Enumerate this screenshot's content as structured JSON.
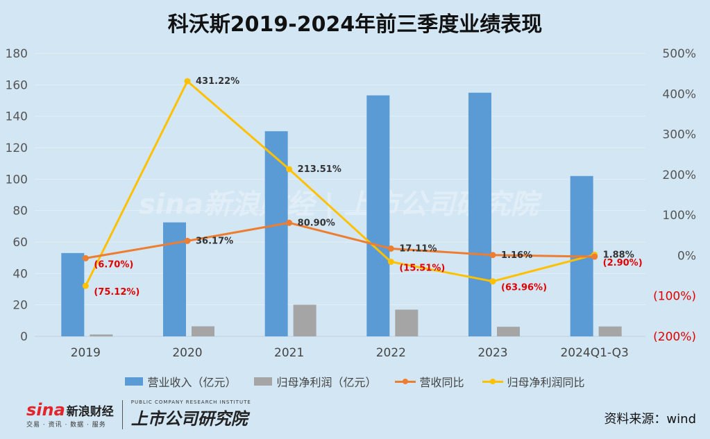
{
  "title": "科沃斯2019-2024年前三季度业绩表现",
  "source": "资料来源：wind",
  "footer": {
    "sina_mark": "sina",
    "brand": "新浪财经",
    "brand_sub": "交易 · 资讯 · 数据 · 服务",
    "institute": "上市公司研究院",
    "institute_en": "PUBLIC COMPANY RESEARCH INSTITUTE"
  },
  "watermark": "sina新浪财经 | 上市公司研究院",
  "colors": {
    "revenue": "#5b9bd5",
    "net_profit": "#a5a5a5",
    "revenue_yoy": "#ed7d31",
    "profit_yoy": "#ffc000",
    "negative_label": "#e00000"
  },
  "chart_data": {
    "type": "bar",
    "categories": [
      "2019",
      "2020",
      "2021",
      "2022",
      "2023",
      "2024Q1-Q3"
    ],
    "series": [
      {
        "name": "营业收入（亿元）",
        "type": "bar",
        "axis": "left",
        "values": [
          53,
          72.5,
          130.5,
          153.3,
          155.0,
          102.0
        ]
      },
      {
        "name": "归母净利润（亿元）",
        "type": "bar",
        "axis": "left",
        "values": [
          1.2,
          6.4,
          20.1,
          17.0,
          6.1,
          6.3
        ]
      },
      {
        "name": "营收同比",
        "type": "line",
        "axis": "right",
        "values": [
          -6.7,
          36.17,
          80.9,
          17.11,
          1.16,
          -2.9
        ],
        "labels": [
          "(6.70%)",
          "36.17%",
          "80.90%",
          "17.11%",
          "1.16%",
          "(2.90%)"
        ]
      },
      {
        "name": "归母净利润同比",
        "type": "line",
        "axis": "right",
        "values": [
          -75.12,
          431.22,
          213.51,
          -15.51,
          -63.96,
          1.88
        ],
        "labels": [
          "(75.12%)",
          "431.22%",
          "213.51%",
          "(15.51%)",
          "(63.96%)",
          "1.88%"
        ]
      }
    ],
    "y_left": {
      "min": 0,
      "max": 180,
      "ticks": [
        "0",
        "20",
        "40",
        "60",
        "80",
        "100",
        "120",
        "140",
        "160",
        "180"
      ]
    },
    "y_right": {
      "min": -200,
      "max": 500,
      "ticks": [
        "(200%)",
        "(100%)",
        "0%",
        "100%",
        "200%",
        "300%",
        "400%",
        "500%"
      ]
    },
    "grid": true,
    "legend_position": "bottom"
  }
}
